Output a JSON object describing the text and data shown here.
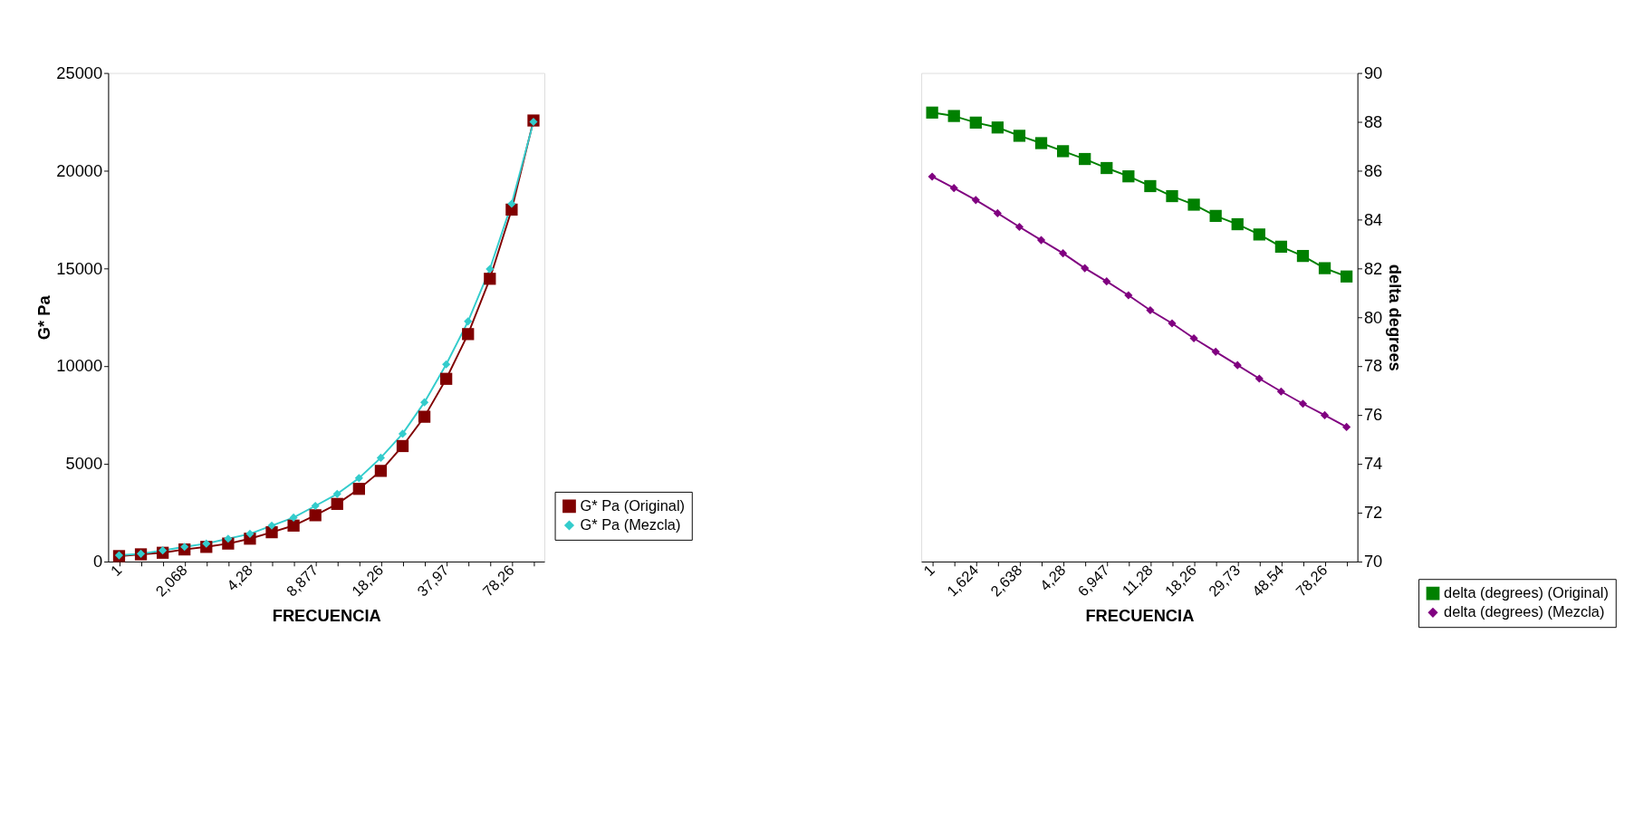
{
  "chart_data": [
    {
      "type": "line",
      "xlabel": "FRECUENCIA",
      "ylabel": "G* Pa",
      "categories": [
        "1",
        null,
        null,
        "2,068",
        null,
        null,
        "4,28",
        null,
        null,
        "8,877",
        null,
        null,
        "18,26",
        null,
        null,
        "37,97",
        null,
        null,
        "78,26",
        null
      ],
      "series": [
        {
          "name": "G* Pa (Original)",
          "color": "#800000",
          "marker": "square",
          "values": [
            280,
            370,
            450,
            620,
            750,
            920,
            1170,
            1500,
            1840,
            2370,
            2950,
            3720,
            4640,
            5910,
            7410,
            9350,
            11640,
            14470,
            18010,
            22570
          ]
        },
        {
          "name": "G* Pa (Mezcla)",
          "color": "#33cccc",
          "marker": "diamond",
          "values": [
            320,
            400,
            570,
            750,
            920,
            1170,
            1420,
            1840,
            2250,
            2850,
            3460,
            4270,
            5310,
            6540,
            8150,
            10090,
            12290,
            14970,
            18310,
            22500
          ]
        }
      ],
      "ylim": [
        0,
        25000
      ],
      "yticks": [
        0,
        5000,
        10000,
        15000,
        20000,
        25000
      ],
      "grid": false,
      "legend": "bottom right"
    },
    {
      "type": "line",
      "xlabel": "FRECUENCIA",
      "y2label": "delta degrees",
      "categories": [
        "1",
        null,
        "1,624",
        null,
        "2,638",
        null,
        "4,28",
        null,
        "6,947",
        null,
        "11,28",
        null,
        "18,26",
        null,
        "29,73",
        null,
        "48,54",
        null,
        "78,26",
        null
      ],
      "series": [
        {
          "name": "delta (degrees) (Original)",
          "color": "#008000",
          "marker": "square",
          "axis": "y2",
          "values": [
            88.38,
            88.24,
            87.97,
            87.77,
            87.43,
            87.13,
            86.8,
            86.48,
            86.11,
            85.77,
            85.37,
            84.96,
            84.61,
            84.15,
            83.81,
            83.39,
            82.89,
            82.51,
            82.01,
            81.67
          ]
        },
        {
          "name": "delta (degrees) (Mezcla)",
          "color": "#800080",
          "marker": "diamond",
          "axis": "y2",
          "values": [
            85.76,
            85.29,
            84.8,
            84.26,
            83.7,
            83.16,
            82.62,
            82.01,
            81.47,
            80.9,
            80.29,
            79.75,
            79.14,
            78.59,
            78.04,
            77.49,
            76.96,
            76.46,
            75.99,
            75.51
          ]
        }
      ],
      "y2lim": [
        70,
        90
      ],
      "y2ticks": [
        70,
        72,
        74,
        76,
        78,
        80,
        82,
        84,
        86,
        88,
        90
      ],
      "grid": false,
      "legend": "bottom right"
    }
  ]
}
